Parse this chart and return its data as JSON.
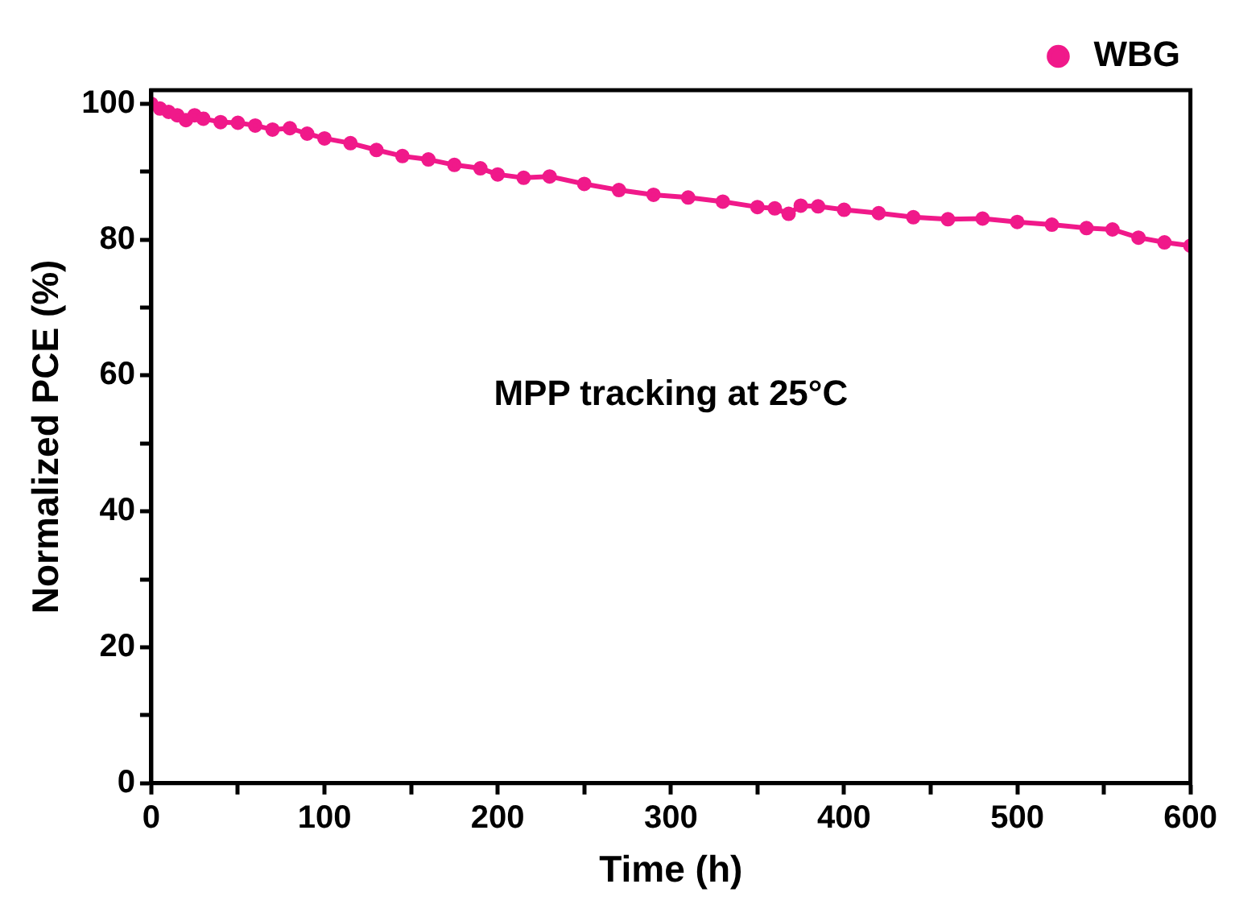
{
  "chart_data": {
    "type": "line",
    "xlabel": "Time (h)",
    "ylabel": "Normalized PCE (%)",
    "annotations": [
      "MPP tracking at 25°C"
    ],
    "x": [
      0,
      5,
      10,
      15,
      20,
      25,
      30,
      40,
      50,
      60,
      70,
      80,
      90,
      100,
      115,
      130,
      145,
      160,
      175,
      190,
      200,
      215,
      230,
      250,
      270,
      290,
      310,
      330,
      350,
      360,
      368,
      375,
      385,
      400,
      420,
      440,
      460,
      480,
      500,
      520,
      540,
      555,
      570,
      585,
      600
    ],
    "series": [
      {
        "name": "WBG",
        "color": "#f0198a",
        "values": [
          100,
          99.3,
          98.8,
          98.3,
          97.6,
          98.3,
          97.8,
          97.3,
          97.2,
          96.8,
          96.2,
          96.4,
          95.6,
          94.9,
          94.2,
          93.2,
          92.3,
          91.8,
          91.0,
          90.5,
          89.6,
          89.1,
          89.3,
          88.2,
          87.3,
          86.6,
          86.2,
          85.6,
          84.8,
          84.6,
          83.8,
          85.0,
          84.9,
          84.4,
          83.9,
          83.3,
          83.0,
          83.1,
          82.6,
          82.2,
          81.7,
          81.5,
          80.3,
          79.6,
          79.1
        ]
      }
    ],
    "xlim": [
      0,
      600
    ],
    "xticks": [
      0,
      {
        "value": 50,
        "label": null
      },
      100,
      {
        "value": 150,
        "label": null
      },
      200,
      {
        "value": 250,
        "label": null
      },
      300,
      {
        "value": 350,
        "label": null
      },
      400,
      {
        "value": 450,
        "label": null
      },
      500,
      {
        "value": 550,
        "label": null
      },
      600
    ],
    "ylim": [
      0,
      102
    ],
    "yticks": [
      0,
      {
        "value": 10,
        "label": null
      },
      20,
      {
        "value": 30,
        "label": null
      },
      40,
      {
        "value": 50,
        "label": null
      },
      60,
      {
        "value": 70,
        "label": null
      },
      80,
      {
        "value": 90,
        "label": null
      },
      100
    ],
    "grid": false,
    "legend": "top right",
    "marker": "circle",
    "line_style": "solid"
  }
}
